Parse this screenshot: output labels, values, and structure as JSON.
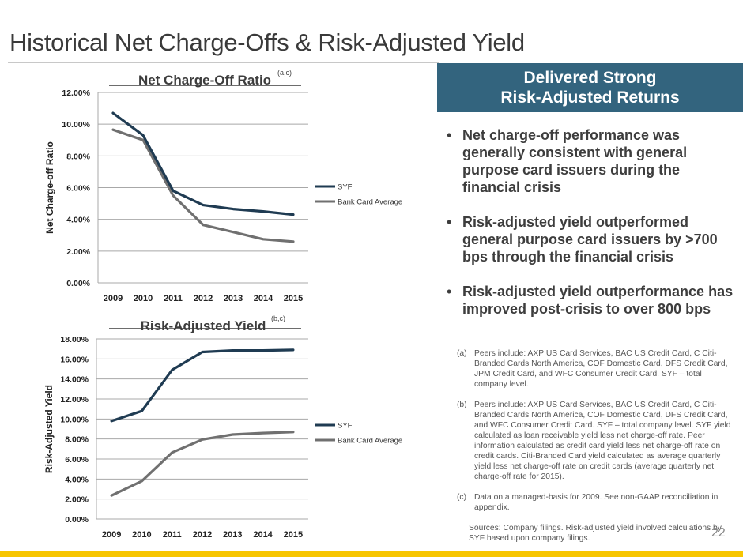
{
  "slide": {
    "title": "Historical Net Charge-Offs & Risk-Adjusted Yield",
    "page_number": "22",
    "colors": {
      "accent": "#33647e",
      "footer": "#f7c600",
      "syf_line": "#1f3b52",
      "bank_line": "#707070"
    }
  },
  "sidebar": {
    "header_line1": "Delivered Strong",
    "header_line2": "Risk-Adjusted Returns",
    "bullets": [
      "Net charge-off performance was generally consistent with general purpose card issuers during the financial crisis",
      "Risk-adjusted yield outperformed general purpose card issuers by >700 bps through the financial crisis",
      "Risk-adjusted yield outperformance has improved post-crisis to over 800 bps"
    ],
    "bullet_symbol": "•",
    "notes": [
      {
        "label": "(a)",
        "text": "Peers include:  AXP US Card Services, BAC US Credit Card, C Citi-Branded Cards North America, COF Domestic Card, DFS Credit Card, JPM Credit Card, and WFC Consumer Credit Card.  SYF – total company level."
      },
      {
        "label": "(b)",
        "text": "Peers include:  AXP US Card Services, BAC US Credit Card, C Citi-Branded Cards North America, COF Domestic Card, DFS Credit Card, and WFC Consumer Credit Card.  SYF – total company level. SYF yield calculated as loan receivable yield less net charge-off rate. Peer information calculated as credit card yield less net charge-off rate on credit cards.  Citi-Branded Card yield calculated as average quarterly yield less net charge-off rate on credit cards (average quarterly net charge-off rate for 2015)."
      },
      {
        "label": "(c)",
        "text": "Data on a managed-basis for 2009. See non-GAAP reconciliation in appendix."
      }
    ],
    "sources": "Sources:  Company filings. Risk-adjusted yield involved calculations by SYF based upon company filings."
  },
  "chart_data": [
    {
      "type": "line",
      "title": "Net Charge-Off Ratio",
      "title_superscript": "(a,c)",
      "xlabel": "",
      "ylabel": "Net Charge-off Ratio",
      "x": [
        "2009",
        "2010",
        "2011",
        "2012",
        "2013",
        "2014",
        "2015"
      ],
      "ylim": [
        0,
        12
      ],
      "yticks": [
        0,
        2,
        4,
        6,
        8,
        10,
        12
      ],
      "ytick_labels": [
        "0.00%",
        "2.00%",
        "4.00%",
        "6.00%",
        "8.00%",
        "10.00%",
        "12.00%"
      ],
      "grid": true,
      "legend": "right",
      "series": [
        {
          "name": "SYF",
          "color": "#1f3b52",
          "values": [
            10.7,
            9.3,
            5.8,
            4.9,
            4.65,
            4.5,
            4.3
          ]
        },
        {
          "name": "Bank Card Average",
          "color": "#707070",
          "values": [
            9.65,
            9.0,
            5.5,
            3.65,
            3.2,
            2.75,
            2.6
          ]
        }
      ]
    },
    {
      "type": "line",
      "title": "Risk-Adjusted Yield",
      "title_superscript": "(b,c)",
      "xlabel": "",
      "ylabel": "Risk-Adjusted Yield",
      "x": [
        "2009",
        "2010",
        "2011",
        "2012",
        "2013",
        "2014",
        "2015"
      ],
      "ylim": [
        0,
        18
      ],
      "yticks": [
        0,
        2,
        4,
        6,
        8,
        10,
        12,
        14,
        16,
        18
      ],
      "ytick_labels": [
        "0.00%",
        "2.00%",
        "4.00%",
        "6.00%",
        "8.00%",
        "10.00%",
        "12.00%",
        "14.00%",
        "16.00%",
        "18.00%"
      ],
      "grid": true,
      "legend": "right",
      "series": [
        {
          "name": "SYF",
          "color": "#1f3b52",
          "values": [
            9.8,
            10.8,
            14.9,
            16.7,
            16.85,
            16.85,
            16.9
          ]
        },
        {
          "name": "Bank Card Average",
          "color": "#707070",
          "values": [
            2.35,
            3.8,
            6.65,
            7.95,
            8.45,
            8.6,
            8.7
          ]
        }
      ]
    }
  ]
}
